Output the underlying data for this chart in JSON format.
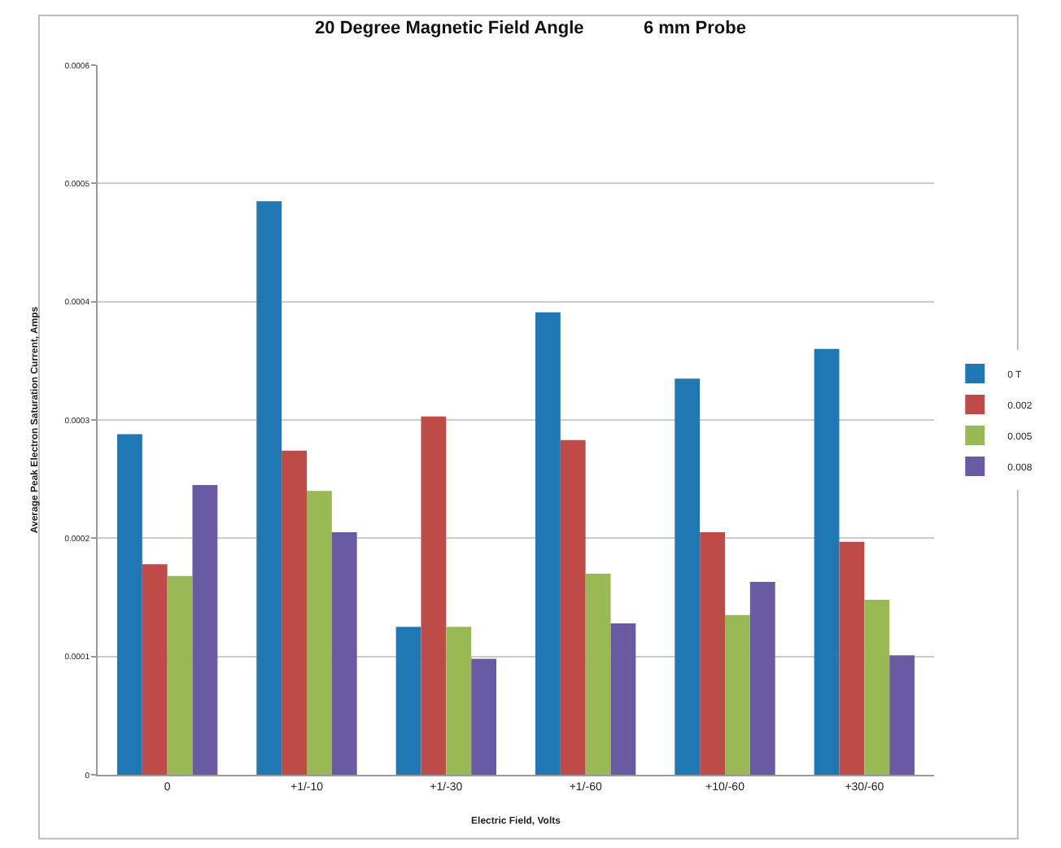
{
  "chart_data": {
    "type": "bar",
    "title": "20 Degree Magnetic Field Angle            6 mm Probe",
    "xlabel": "Electric Field, Volts",
    "ylabel": "Average Peak Electron Saturation Current, Amps",
    "categories": [
      "0",
      "+1/-10",
      "+1/-30",
      "+1/-60",
      "+10/-60",
      "+30/-60"
    ],
    "series": [
      {
        "name": "0 T",
        "color": "#1f77b4",
        "values": [
          0.000288,
          0.000485,
          0.000125,
          0.000391,
          0.000335,
          0.00036
        ]
      },
      {
        "name": "0.002",
        "color": "#be4b48",
        "values": [
          0.000178,
          0.000274,
          0.000303,
          0.000283,
          0.000205,
          0.000197
        ]
      },
      {
        "name": "0.005",
        "color": "#98b954",
        "values": [
          0.000168,
          0.00024,
          0.000125,
          0.00017,
          0.000135,
          0.000148
        ]
      },
      {
        "name": "0.008",
        "color": "#6a5aa4",
        "values": [
          0.000245,
          0.000205,
          9.8e-05,
          0.000128,
          0.000163,
          0.000101
        ]
      }
    ],
    "ylim": [
      0,
      0.0006
    ],
    "yticks": [
      0,
      0.0001,
      0.0002,
      0.0003,
      0.0004,
      0.0005,
      0.0006
    ],
    "grid": "y",
    "legend": "right"
  }
}
